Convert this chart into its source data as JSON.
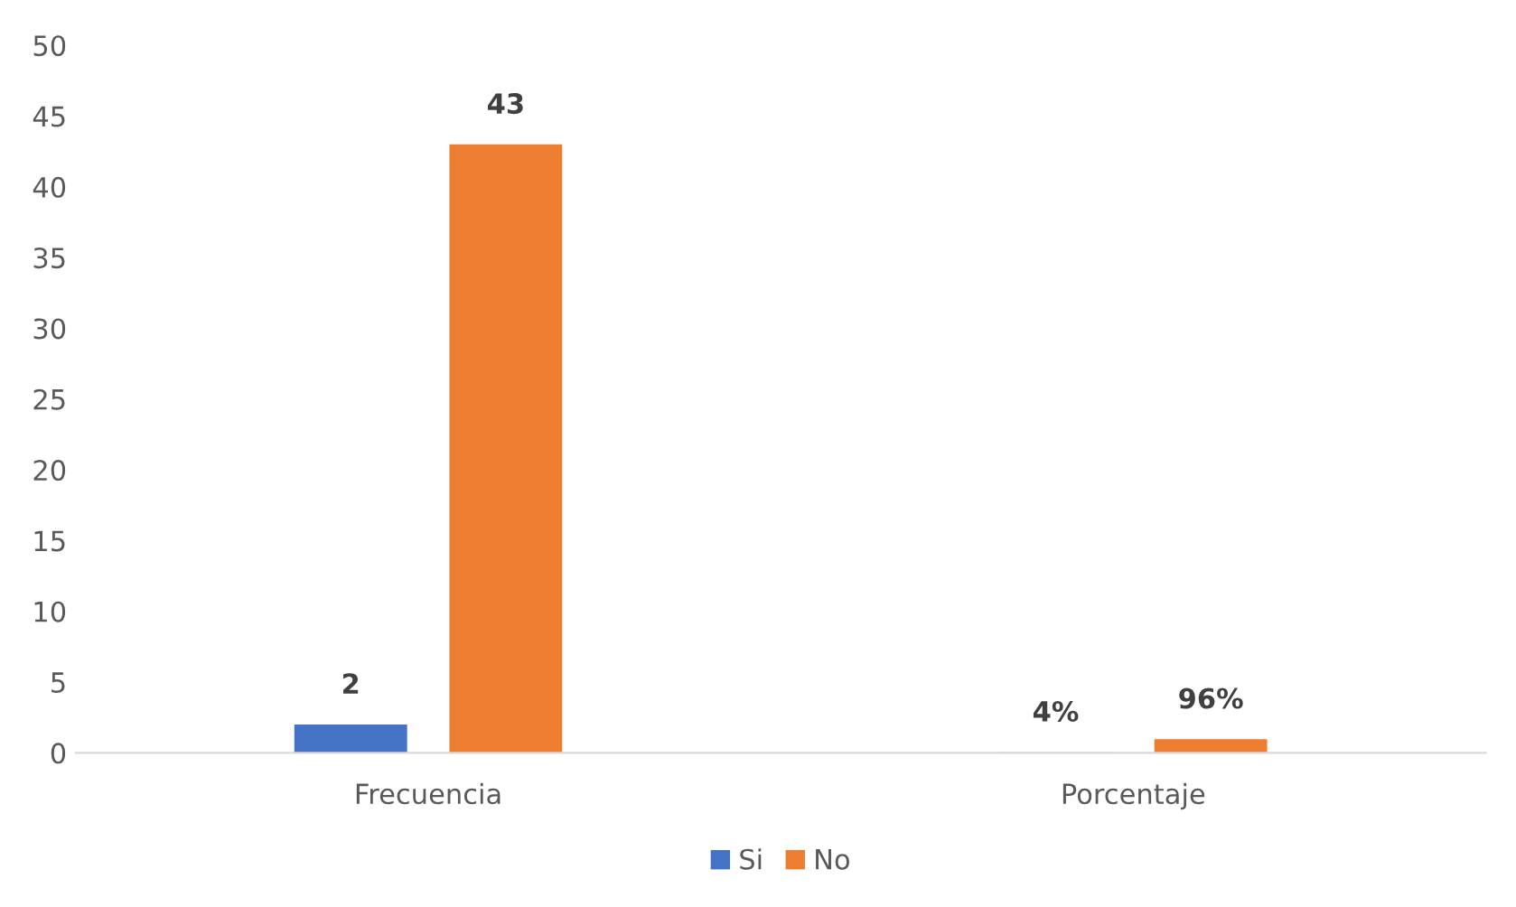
{
  "chart_data": {
    "type": "bar",
    "categories": [
      "Frecuencia",
      "Porcentaje"
    ],
    "series": [
      {
        "name": "Si",
        "color": "#4472c4",
        "values": [
          2,
          0.04
        ],
        "value_labels": [
          "2",
          "4%"
        ]
      },
      {
        "name": "No",
        "color": "#ed7d31",
        "values": [
          43,
          0.96
        ],
        "value_labels": [
          "43",
          "96%"
        ]
      }
    ],
    "ylim": [
      0,
      50
    ],
    "yticks": [
      0,
      5,
      10,
      15,
      20,
      25,
      30,
      35,
      40,
      45,
      50
    ],
    "grid": false,
    "legend": "bottom"
  }
}
